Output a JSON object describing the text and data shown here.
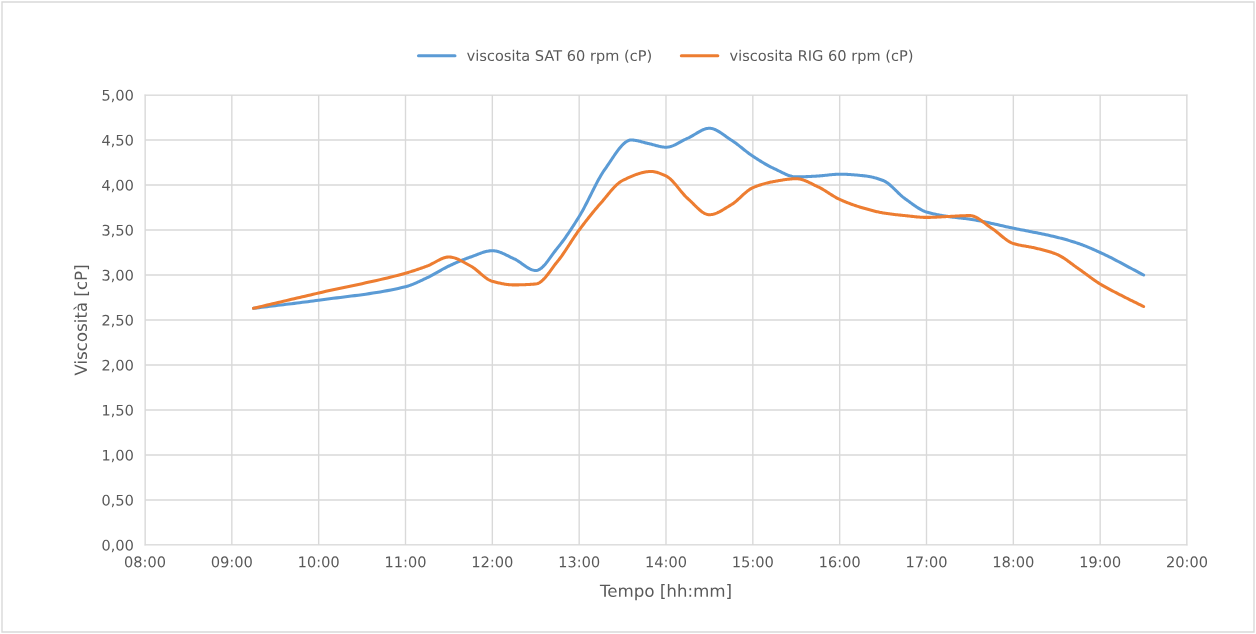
{
  "chart_data": {
    "type": "line",
    "xlabel": "Tempo [hh:mm]",
    "ylabel": "Viscosità [cP]",
    "series": [
      {
        "name": "viscosita SAT 60 rpm (cP)",
        "color": "#5b9bd5",
        "x": [
          9.25,
          10,
          11,
          11.25,
          11.5,
          11.75,
          12,
          12.25,
          12.5,
          12.75,
          13,
          13.3,
          13.6,
          13.8,
          14,
          14.25,
          14.5,
          14.75,
          15,
          15.25,
          15.5,
          15.75,
          16,
          16.3,
          16.5,
          16.75,
          17,
          17.25,
          17.5,
          18,
          18.5,
          18.75,
          19,
          19.5
        ],
        "values": [
          2.63,
          2.72,
          2.87,
          2.97,
          3.1,
          3.2,
          3.27,
          3.18,
          3.05,
          3.3,
          3.65,
          4.18,
          4.5,
          4.46,
          4.42,
          4.52,
          4.63,
          4.5,
          4.32,
          4.18,
          4.09,
          4.1,
          4.12,
          4.1,
          4.05,
          3.85,
          3.7,
          3.65,
          3.62,
          3.52,
          3.42,
          3.35,
          3.25,
          3.0
        ]
      },
      {
        "name": "viscosita RIG 60 rpm (cP)",
        "color": "#ed7d31",
        "x": [
          9.25,
          10,
          11,
          11.25,
          11.5,
          11.75,
          12,
          12.25,
          12.5,
          12.75,
          13,
          13.25,
          13.5,
          13.83,
          14,
          14.25,
          14.5,
          14.75,
          15,
          15.25,
          15.5,
          15.75,
          16,
          16.25,
          16.5,
          16.75,
          17,
          17.25,
          17.5,
          17.75,
          18,
          18.25,
          18.5,
          18.75,
          19,
          19.25,
          19.5
        ],
        "values": [
          2.63,
          2.8,
          3.02,
          3.1,
          3.2,
          3.1,
          2.93,
          2.89,
          2.9,
          3.15,
          3.5,
          3.8,
          4.05,
          4.15,
          4.1,
          3.85,
          3.67,
          3.78,
          3.97,
          4.04,
          4.07,
          3.98,
          3.84,
          3.75,
          3.69,
          3.66,
          3.64,
          3.65,
          3.66,
          3.52,
          3.35,
          3.3,
          3.23,
          3.07,
          2.9,
          2.77,
          2.65
        ]
      }
    ],
    "xlim": [
      8,
      20
    ],
    "xticks": [
      {
        "value": 8,
        "label": "08:00"
      },
      {
        "value": 9,
        "label": "09:00"
      },
      {
        "value": 10,
        "label": "10:00"
      },
      {
        "value": 11,
        "label": "11:00"
      },
      {
        "value": 12,
        "label": "12:00"
      },
      {
        "value": 13,
        "label": "13:00"
      },
      {
        "value": 14,
        "label": "14:00"
      },
      {
        "value": 15,
        "label": "15:00"
      },
      {
        "value": 16,
        "label": "16:00"
      },
      {
        "value": 17,
        "label": "17:00"
      },
      {
        "value": 18,
        "label": "18:00"
      },
      {
        "value": 19,
        "label": "19:00"
      },
      {
        "value": 20,
        "label": "20:00"
      }
    ],
    "ylim": [
      0,
      5
    ],
    "yticks": [
      {
        "value": 0,
        "label": "0,00"
      },
      {
        "value": 0.5,
        "label": "0,50"
      },
      {
        "value": 1,
        "label": "1,00"
      },
      {
        "value": 1.5,
        "label": "1,50"
      },
      {
        "value": 2,
        "label": "2,00"
      },
      {
        "value": 2.5,
        "label": "2,50"
      },
      {
        "value": 3,
        "label": "3,00"
      },
      {
        "value": 3.5,
        "label": "3,50"
      },
      {
        "value": 4,
        "label": "4,00"
      },
      {
        "value": 4.5,
        "label": "4,50"
      },
      {
        "value": 5,
        "label": "5,00"
      }
    ],
    "grid": true,
    "legend": "top",
    "marker": "none",
    "line_style": "solid"
  }
}
